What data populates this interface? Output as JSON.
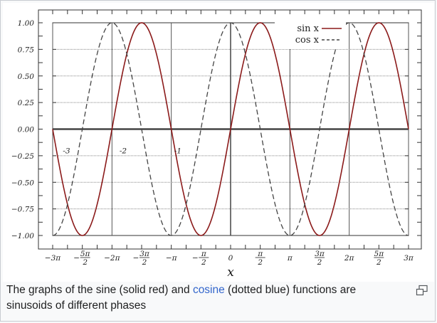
{
  "caption": {
    "before": "The graphs of the sine (solid red) and ",
    "link": "cosine",
    "after": " (dotted blue) functions are sinusoids of different phases"
  },
  "enlarge": {
    "icon": "magnify-clip-icon"
  },
  "chart_data": {
    "type": "line",
    "title": "",
    "xlabel": "x",
    "ylabel": "",
    "xlim": [
      -9.42478,
      9.42478
    ],
    "ylim": [
      -1.0,
      1.0
    ],
    "grid": true,
    "legend_position": "top-right",
    "x_ticks": [
      {
        "value": -9.42478,
        "label": "−3π",
        "num": "",
        "den": "",
        "sign": ""
      },
      {
        "value": -7.85398,
        "label": "−5π/2",
        "num": "5π",
        "den": "2",
        "sign": "−"
      },
      {
        "value": -6.28319,
        "label": "−2π",
        "num": "",
        "den": "",
        "sign": ""
      },
      {
        "value": -4.71239,
        "label": "−3π/2",
        "num": "3π",
        "den": "2",
        "sign": "−"
      },
      {
        "value": -3.14159,
        "label": "−π",
        "num": "",
        "den": "",
        "sign": ""
      },
      {
        "value": -1.5708,
        "label": "−π/2",
        "num": "π",
        "den": "2",
        "sign": "−"
      },
      {
        "value": 0,
        "label": "0",
        "num": "",
        "den": "",
        "sign": ""
      },
      {
        "value": 1.5708,
        "label": "π/2",
        "num": "π",
        "den": "2",
        "sign": ""
      },
      {
        "value": 3.14159,
        "label": "π",
        "num": "",
        "den": "",
        "sign": ""
      },
      {
        "value": 4.71239,
        "label": "3π/2",
        "num": "3π",
        "den": "2",
        "sign": ""
      },
      {
        "value": 6.28319,
        "label": "2π",
        "num": "",
        "den": "",
        "sign": ""
      },
      {
        "value": 7.85398,
        "label": "5π/2",
        "num": "5π",
        "den": "2",
        "sign": ""
      },
      {
        "value": 9.42478,
        "label": "3π",
        "num": "",
        "den": "",
        "sign": ""
      }
    ],
    "y_ticks": [
      {
        "value": 1.0,
        "label": "1.00"
      },
      {
        "value": 0.75,
        "label": "0.75"
      },
      {
        "value": 0.5,
        "label": "0.50"
      },
      {
        "value": 0.25,
        "label": "0.25"
      },
      {
        "value": 0.0,
        "label": "0.00"
      },
      {
        "value": -0.25,
        "label": "−0.25"
      },
      {
        "value": -0.5,
        "label": "−0.50"
      },
      {
        "value": -0.75,
        "label": "−0.75"
      },
      {
        "value": -1.0,
        "label": "−1.00"
      }
    ],
    "inner_labels": [
      {
        "x": -9.0,
        "label": "-3"
      },
      {
        "x": -6.0,
        "label": "-2"
      },
      {
        "x": -3.1,
        "label": "-1"
      }
    ],
    "series": [
      {
        "name": "sin x",
        "function": "sin",
        "color": "#8b1a1a",
        "style": "solid"
      },
      {
        "name": "cos x",
        "function": "cos",
        "color": "#444444",
        "style": "dashed"
      }
    ],
    "colors": {
      "sine": "#8b1a1a",
      "cosine": "#444444",
      "axis": "#222222"
    }
  }
}
